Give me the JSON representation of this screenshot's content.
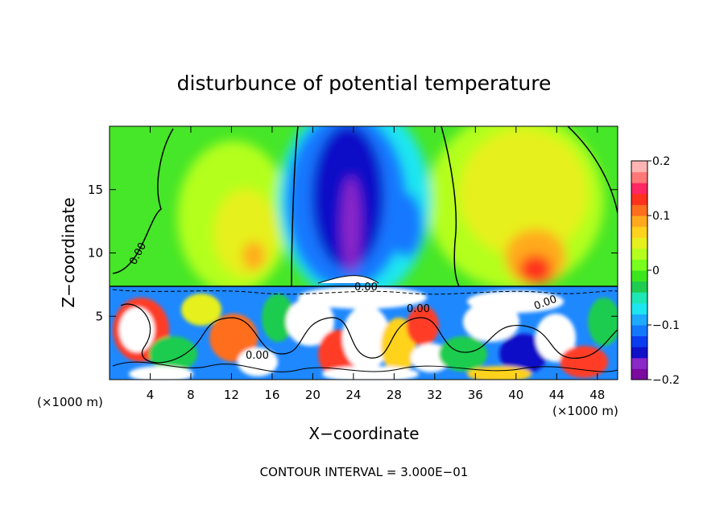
{
  "chart_data": {
    "type": "heatmap",
    "title": "disturbunce of potential temperature",
    "xlabel": "X−coordinate",
    "ylabel": "Z−coordinate",
    "x_unit": "(×1000 m)",
    "x_unit_right": "(×1000 m)",
    "footer": "CONTOUR INTERVAL = 3.000E−01",
    "xlim": [
      0,
      50
    ],
    "ylim": [
      0,
      20
    ],
    "xticks": [
      4,
      8,
      12,
      16,
      20,
      24,
      28,
      32,
      36,
      40,
      44,
      48
    ],
    "yticks": [
      5,
      10,
      15
    ],
    "colorbar": {
      "range": [
        -0.2,
        0.2
      ],
      "ticks": [
        0.2,
        0.1,
        0,
        -0.1,
        -0.2
      ],
      "tick_labels": [
        "0.2",
        "0.1",
        "0",
        "−0.1",
        "−0.2"
      ],
      "colors": [
        "#7a0aa0",
        "#8a28c8",
        "#1010c8",
        "#0a3cf0",
        "#1478ff",
        "#1eaaff",
        "#1ee6f0",
        "#1ee6b4",
        "#1ecc50",
        "#3ce61e",
        "#78ff1e",
        "#b4ff1e",
        "#e6f01e",
        "#ffd21e",
        "#ffaa1e",
        "#ff6e1e",
        "#ff321e",
        "#ff2864",
        "#ff7878",
        "#ffb4b4"
      ]
    },
    "contour_labels": [
      "0.00",
      "0.00",
      "0.00",
      "0.00",
      "0.00"
    ],
    "z_interface": 7.4,
    "features": [
      {
        "name": "upper-layer negative anomaly (blue plume)",
        "x_center": 23.5,
        "z_top": 19.6,
        "min_value": -0.2
      },
      {
        "name": "positive anomaly left",
        "x_center": 14,
        "z": 11,
        "value": 0.1
      },
      {
        "name": "positive anomaly right",
        "x_center": 42.5,
        "z": 9,
        "value": 0.15
      },
      {
        "name": "turbulent lower layer",
        "z_range": [
          0,
          7.4
        ],
        "value_range": [
          -0.2,
          0.2
        ]
      }
    ]
  }
}
